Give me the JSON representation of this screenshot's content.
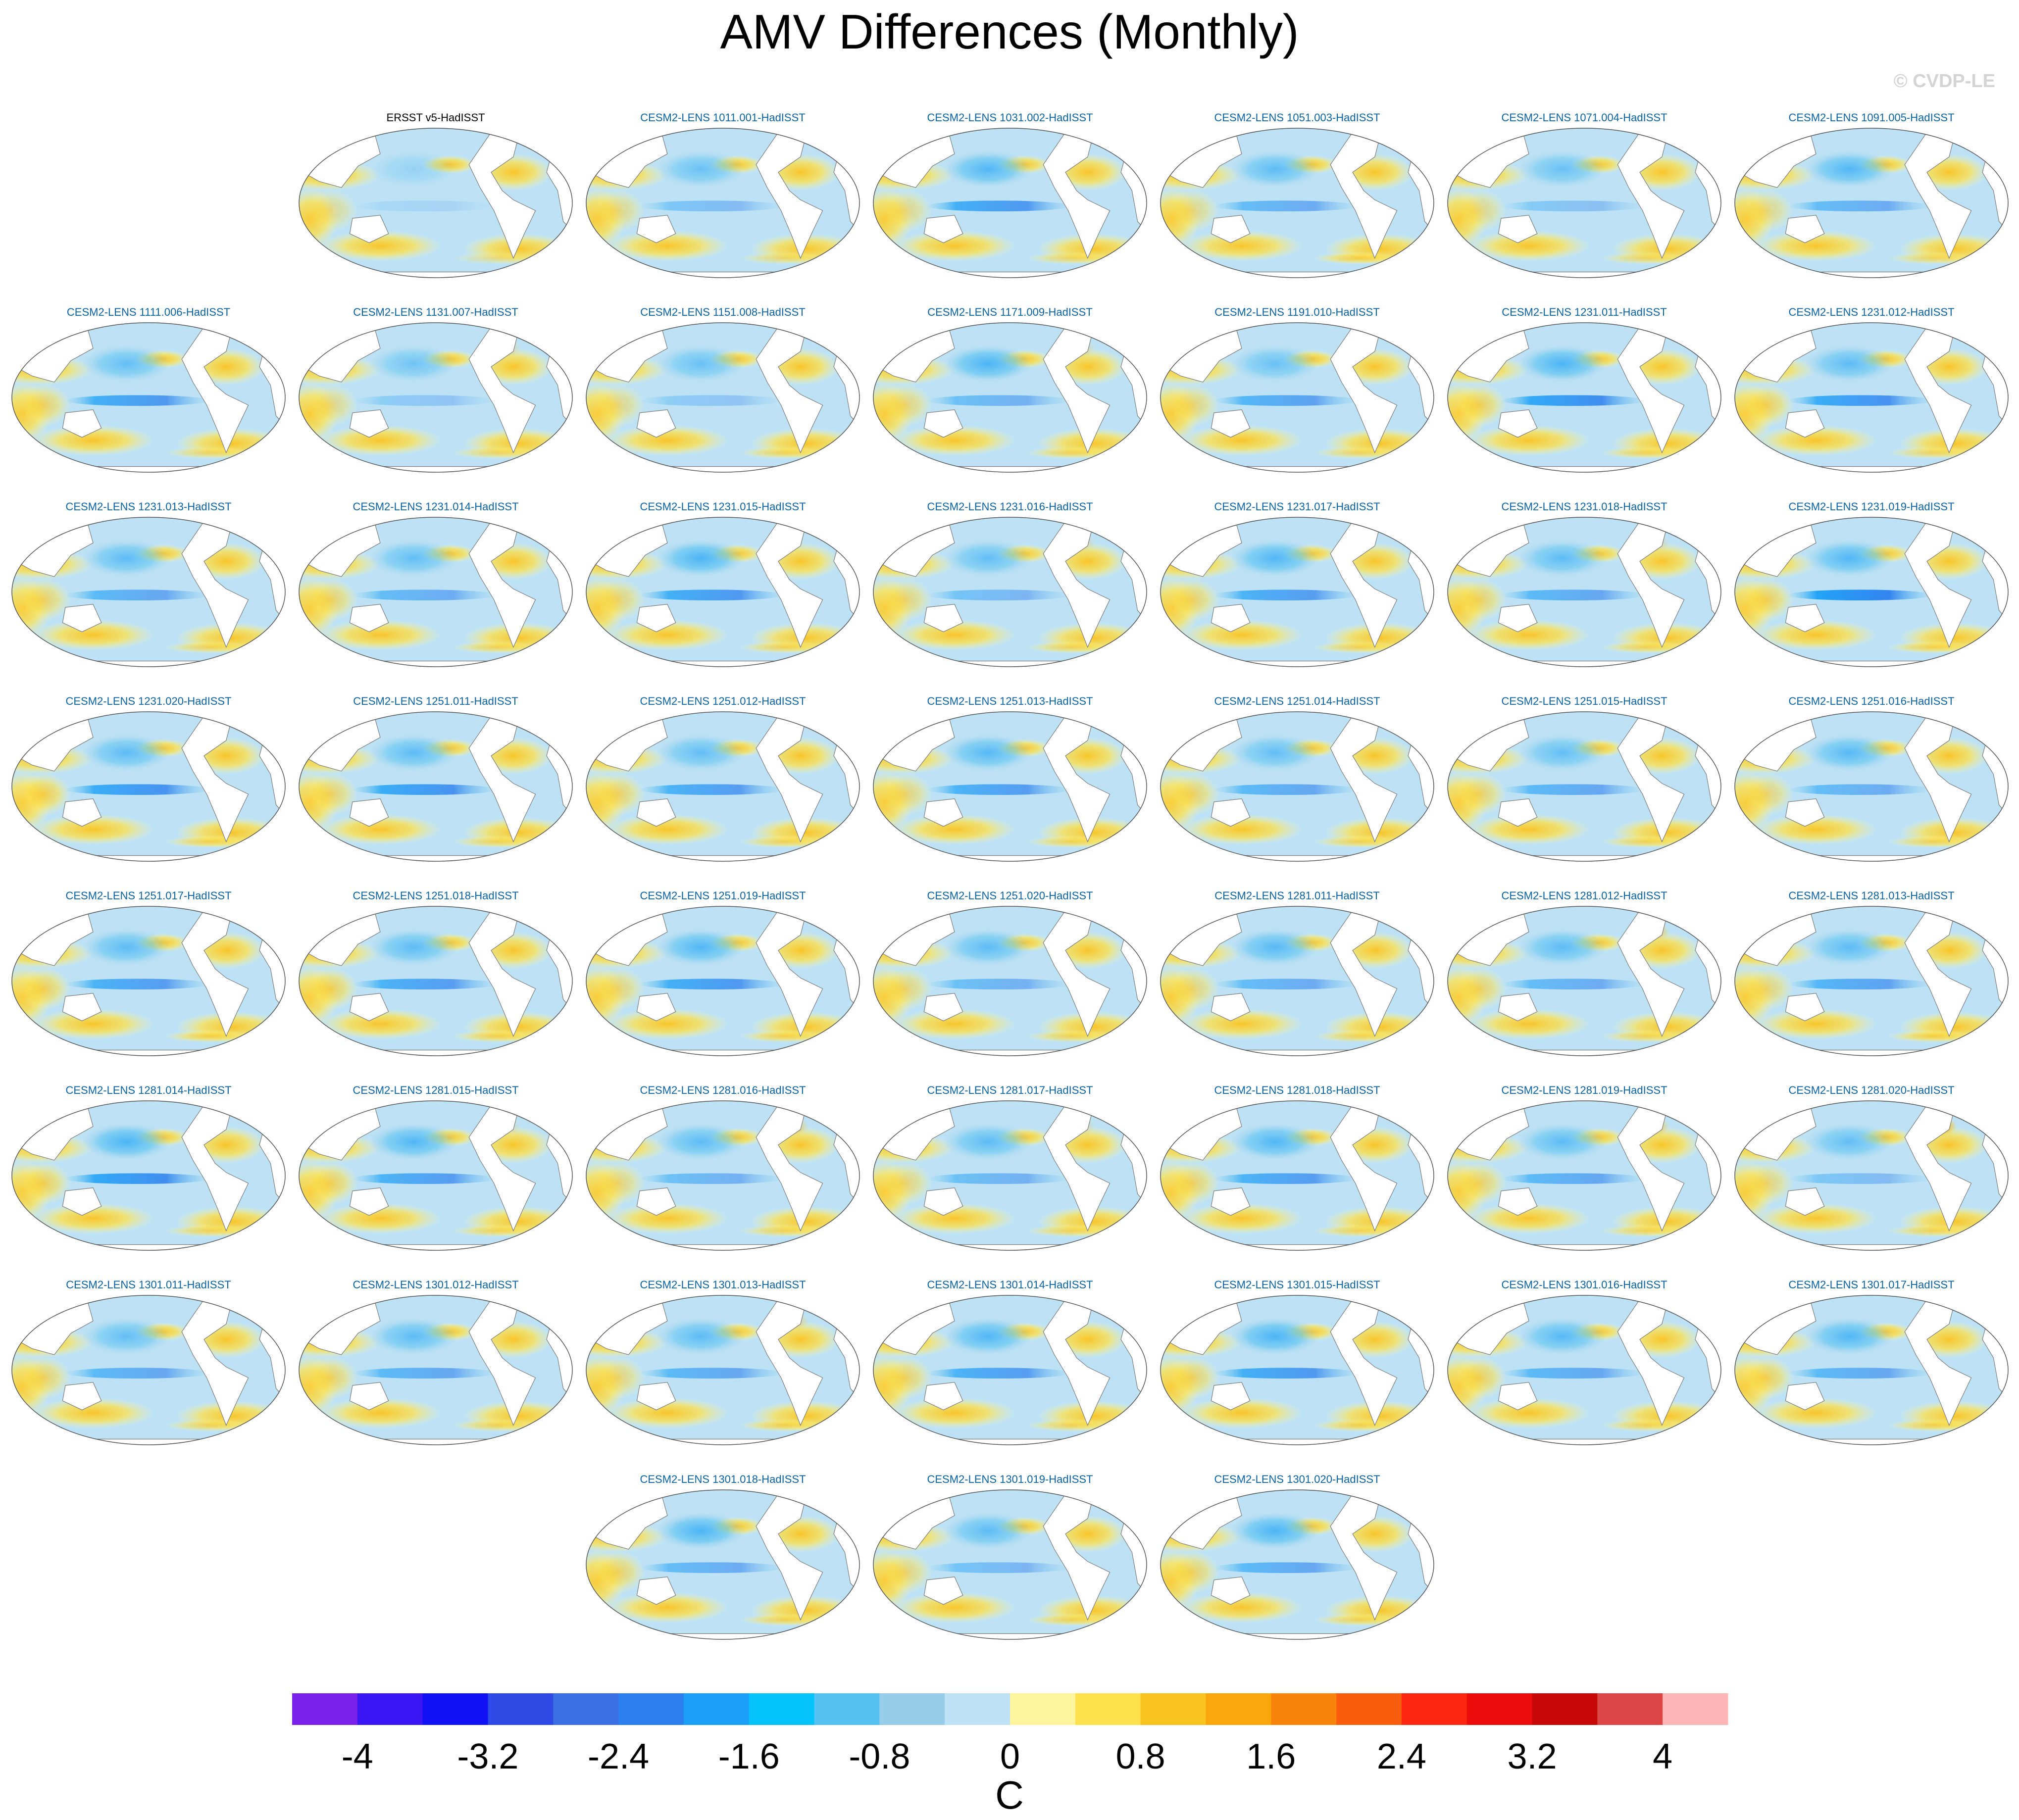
{
  "chart_data": {
    "type": "map-panels",
    "title": "AMV Differences (Monthly)",
    "credit": "© CVDP-LE",
    "panels": [
      {
        "title": "ERSST v5-HadISST",
        "row": 0,
        "col": 1,
        "title_color": "#000000",
        "features": {
          "band": 0.15,
          "north": 0.0,
          "hot": 0.0,
          "south": 0.1,
          "indian": 0.2
        }
      },
      {
        "title": "CESM2-LENS 1011.001-HadISST",
        "row": 0,
        "col": 2,
        "title_color": "#0b62a0",
        "features": {
          "band": 0.4,
          "north": 0.35,
          "hot": 0.0,
          "south": 0.3,
          "indian": 0.3
        }
      },
      {
        "title": "CESM2-LENS 1031.002-HadISST",
        "row": 0,
        "col": 3,
        "title_color": "#0b62a0",
        "features": {
          "band": 0.75,
          "north": 0.55,
          "hot": 0.0,
          "south": 0.4,
          "indian": 0.3
        }
      },
      {
        "title": "CESM2-LENS 1051.003-HadISST",
        "row": 0,
        "col": 4,
        "title_color": "#0b62a0",
        "features": {
          "band": 0.55,
          "north": 0.45,
          "hot": 0.1,
          "south": 0.7,
          "indian": 0.3
        }
      },
      {
        "title": "CESM2-LENS 1071.004-HadISST",
        "row": 0,
        "col": 5,
        "title_color": "#0b62a0",
        "features": {
          "band": 0.35,
          "north": 0.35,
          "hot": 0.0,
          "south": 0.4,
          "indian": 0.3
        }
      },
      {
        "title": "CESM2-LENS 1091.005-HadISST",
        "row": 0,
        "col": 6,
        "title_color": "#0b62a0",
        "features": {
          "band": 0.55,
          "north": 0.55,
          "hot": 0.0,
          "south": 0.4,
          "indian": 0.3
        }
      },
      {
        "title": "CESM2-LENS 1111.006-HadISST",
        "row": 1,
        "col": 0,
        "title_color": "#0b62a0",
        "features": {
          "band": 0.75,
          "north": 0.4,
          "hot": 0.0,
          "south": 0.4,
          "indian": 0.5
        }
      },
      {
        "title": "CESM2-LENS 1131.007-HadISST",
        "row": 1,
        "col": 1,
        "title_color": "#0b62a0",
        "features": {
          "band": 0.3,
          "north": 0.3,
          "hot": 0.3,
          "south": 0.4,
          "indian": 0.3
        }
      },
      {
        "title": "CESM2-LENS 1151.008-HadISST",
        "row": 1,
        "col": 2,
        "title_color": "#0b62a0",
        "features": {
          "band": 0.3,
          "north": 0.35,
          "hot": 0.1,
          "south": 0.5,
          "indian": 0.3
        }
      },
      {
        "title": "CESM2-LENS 1171.009-HadISST",
        "row": 1,
        "col": 3,
        "title_color": "#0b62a0",
        "features": {
          "band": 0.5,
          "north": 0.6,
          "hot": 0.3,
          "south": 0.5,
          "indian": 0.4
        }
      },
      {
        "title": "CESM2-LENS 1191.010-HadISST",
        "row": 1,
        "col": 4,
        "title_color": "#0b62a0",
        "features": {
          "band": 0.65,
          "north": 0.35,
          "hot": 0.0,
          "south": 0.4,
          "indian": 0.4
        }
      },
      {
        "title": "CESM2-LENS 1231.011-HadISST",
        "row": 1,
        "col": 5,
        "title_color": "#0b62a0",
        "features": {
          "band": 0.85,
          "north": 0.6,
          "hot": 0.0,
          "south": 0.5,
          "indian": 0.6
        }
      },
      {
        "title": "CESM2-LENS 1231.012-HadISST",
        "row": 1,
        "col": 6,
        "title_color": "#0b62a0",
        "features": {
          "band": 0.8,
          "north": 0.45,
          "hot": 0.0,
          "south": 0.4,
          "indian": 0.6
        }
      },
      {
        "title": "CESM2-LENS 1231.013-HadISST",
        "row": 2,
        "col": 0,
        "title_color": "#0b62a0",
        "features": {
          "band": 0.6,
          "north": 0.45,
          "hot": 0.0,
          "south": 0.5,
          "indian": 0.5
        }
      },
      {
        "title": "CESM2-LENS 1231.014-HadISST",
        "row": 2,
        "col": 1,
        "title_color": "#0b62a0",
        "features": {
          "band": 0.55,
          "north": 0.4,
          "hot": 0.0,
          "south": 0.5,
          "indian": 0.5
        }
      },
      {
        "title": "CESM2-LENS 1231.015-HadISST",
        "row": 2,
        "col": 2,
        "title_color": "#0b62a0",
        "features": {
          "band": 0.75,
          "north": 0.6,
          "hot": 0.1,
          "south": 0.5,
          "indian": 0.4
        }
      },
      {
        "title": "CESM2-LENS 1231.016-HadISST",
        "row": 2,
        "col": 3,
        "title_color": "#0b62a0",
        "features": {
          "band": 0.45,
          "north": 0.4,
          "hot": 0.3,
          "south": 0.5,
          "indian": 0.4
        }
      },
      {
        "title": "CESM2-LENS 1231.017-HadISST",
        "row": 2,
        "col": 4,
        "title_color": "#0b62a0",
        "features": {
          "band": 0.7,
          "north": 0.55,
          "hot": 0.0,
          "south": 0.5,
          "indian": 0.5
        }
      },
      {
        "title": "CESM2-LENS 1231.018-HadISST",
        "row": 2,
        "col": 5,
        "title_color": "#0b62a0",
        "features": {
          "band": 0.6,
          "north": 0.45,
          "hot": 0.3,
          "south": 0.5,
          "indian": 0.5
        }
      },
      {
        "title": "CESM2-LENS 1231.019-HadISST",
        "row": 2,
        "col": 6,
        "title_color": "#0b62a0",
        "features": {
          "band": 0.95,
          "north": 0.55,
          "hot": 0.0,
          "south": 0.6,
          "indian": 0.6
        }
      },
      {
        "title": "CESM2-LENS 1231.020-HadISST",
        "row": 3,
        "col": 0,
        "title_color": "#0b62a0",
        "features": {
          "band": 0.8,
          "north": 0.45,
          "hot": 0.0,
          "south": 0.6,
          "indian": 0.7
        }
      },
      {
        "title": "CESM2-LENS 1251.011-HadISST",
        "row": 3,
        "col": 1,
        "title_color": "#0b62a0",
        "features": {
          "band": 0.8,
          "north": 0.45,
          "hot": 0.0,
          "south": 0.5,
          "indian": 0.5
        }
      },
      {
        "title": "CESM2-LENS 1251.012-HadISST",
        "row": 3,
        "col": 2,
        "title_color": "#0b62a0",
        "features": {
          "band": 0.7,
          "north": 0.4,
          "hot": 0.0,
          "south": 0.5,
          "indian": 0.5
        }
      },
      {
        "title": "CESM2-LENS 1251.013-HadISST",
        "row": 3,
        "col": 3,
        "title_color": "#0b62a0",
        "features": {
          "band": 0.7,
          "north": 0.5,
          "hot": 0.0,
          "south": 0.5,
          "indian": 0.4
        }
      },
      {
        "title": "CESM2-LENS 1251.014-HadISST",
        "row": 3,
        "col": 4,
        "title_color": "#0b62a0",
        "features": {
          "band": 0.6,
          "north": 0.4,
          "hot": 0.0,
          "south": 0.5,
          "indian": 0.5
        }
      },
      {
        "title": "CESM2-LENS 1251.015-HadISST",
        "row": 3,
        "col": 5,
        "title_color": "#0b62a0",
        "features": {
          "band": 0.6,
          "north": 0.4,
          "hot": 0.0,
          "south": 0.5,
          "indian": 0.5
        }
      },
      {
        "title": "CESM2-LENS 1251.016-HadISST",
        "row": 3,
        "col": 6,
        "title_color": "#0b62a0",
        "features": {
          "band": 0.55,
          "north": 0.5,
          "hot": 0.0,
          "south": 0.5,
          "indian": 0.4
        }
      },
      {
        "title": "CESM2-LENS 1251.017-HadISST",
        "row": 4,
        "col": 0,
        "title_color": "#0b62a0",
        "features": {
          "band": 0.7,
          "north": 0.45,
          "hot": 0.0,
          "south": 0.7,
          "indian": 0.6
        }
      },
      {
        "title": "CESM2-LENS 1251.018-HadISST",
        "row": 4,
        "col": 1,
        "title_color": "#0b62a0",
        "features": {
          "band": 0.7,
          "north": 0.45,
          "hot": 0.0,
          "south": 0.6,
          "indian": 0.6
        }
      },
      {
        "title": "CESM2-LENS 1251.019-HadISST",
        "row": 4,
        "col": 2,
        "title_color": "#0b62a0",
        "features": {
          "band": 0.75,
          "north": 0.55,
          "hot": 0.0,
          "south": 0.6,
          "indian": 0.4
        }
      },
      {
        "title": "CESM2-LENS 1251.020-HadISST",
        "row": 4,
        "col": 3,
        "title_color": "#0b62a0",
        "features": {
          "band": 0.5,
          "north": 0.45,
          "hot": 0.1,
          "south": 0.5,
          "indian": 0.4
        }
      },
      {
        "title": "CESM2-LENS 1281.011-HadISST",
        "row": 4,
        "col": 4,
        "title_color": "#0b62a0",
        "features": {
          "band": 0.55,
          "north": 0.5,
          "hot": 0.0,
          "south": 0.5,
          "indian": 0.4
        }
      },
      {
        "title": "CESM2-LENS 1281.012-HadISST",
        "row": 4,
        "col": 5,
        "title_color": "#0b62a0",
        "features": {
          "band": 0.55,
          "north": 0.45,
          "hot": 0.6,
          "south": 0.5,
          "indian": 0.5
        }
      },
      {
        "title": "CESM2-LENS 1281.013-HadISST",
        "row": 4,
        "col": 6,
        "title_color": "#0b62a0",
        "features": {
          "band": 0.65,
          "north": 0.45,
          "hot": 0.0,
          "south": 0.7,
          "indian": 0.4
        }
      },
      {
        "title": "CESM2-LENS 1281.014-HadISST",
        "row": 5,
        "col": 0,
        "title_color": "#0b62a0",
        "features": {
          "band": 0.85,
          "north": 0.6,
          "hot": 0.0,
          "south": 0.5,
          "indian": 0.6
        }
      },
      {
        "title": "CESM2-LENS 1281.015-HadISST",
        "row": 5,
        "col": 1,
        "title_color": "#0b62a0",
        "features": {
          "band": 0.7,
          "north": 0.55,
          "hot": 0.2,
          "south": 0.5,
          "indian": 0.6
        }
      },
      {
        "title": "CESM2-LENS 1281.016-HadISST",
        "row": 5,
        "col": 2,
        "title_color": "#0b62a0",
        "features": {
          "band": 0.5,
          "north": 0.45,
          "hot": 0.6,
          "south": 0.5,
          "indian": 0.4
        }
      },
      {
        "title": "CESM2-LENS 1281.017-HadISST",
        "row": 5,
        "col": 3,
        "title_color": "#0b62a0",
        "features": {
          "band": 0.5,
          "north": 0.45,
          "hot": 0.3,
          "south": 0.5,
          "indian": 0.4
        }
      },
      {
        "title": "CESM2-LENS 1281.018-HadISST",
        "row": 5,
        "col": 4,
        "title_color": "#0b62a0",
        "features": {
          "band": 0.7,
          "north": 0.55,
          "hot": 0.0,
          "south": 0.5,
          "indian": 0.5
        }
      },
      {
        "title": "CESM2-LENS 1281.019-HadISST",
        "row": 5,
        "col": 5,
        "title_color": "#0b62a0",
        "features": {
          "band": 0.6,
          "north": 0.45,
          "hot": 0.6,
          "south": 0.5,
          "indian": 0.5
        }
      },
      {
        "title": "CESM2-LENS 1281.020-HadISST",
        "row": 5,
        "col": 6,
        "title_color": "#0b62a0",
        "features": {
          "band": 0.4,
          "north": 0.4,
          "hot": 1.0,
          "south": 0.5,
          "indian": 0.4
        }
      },
      {
        "title": "CESM2-LENS 1301.011-HadISST",
        "row": 6,
        "col": 0,
        "title_color": "#0b62a0",
        "features": {
          "band": 0.6,
          "north": 0.4,
          "hot": 0.0,
          "south": 0.5,
          "indian": 0.5
        }
      },
      {
        "title": "CESM2-LENS 1301.012-HadISST",
        "row": 6,
        "col": 1,
        "title_color": "#0b62a0",
        "features": {
          "band": 0.6,
          "north": 0.45,
          "hot": 0.0,
          "south": 0.5,
          "indian": 0.5
        }
      },
      {
        "title": "CESM2-LENS 1301.013-HadISST",
        "row": 6,
        "col": 2,
        "title_color": "#0b62a0",
        "features": {
          "band": 0.6,
          "north": 0.45,
          "hot": 0.5,
          "south": 0.6,
          "indian": 0.4
        }
      },
      {
        "title": "CESM2-LENS 1301.014-HadISST",
        "row": 6,
        "col": 3,
        "title_color": "#0b62a0",
        "features": {
          "band": 0.7,
          "north": 0.55,
          "hot": 0.0,
          "south": 0.5,
          "indian": 0.5
        }
      },
      {
        "title": "CESM2-LENS 1301.015-HadISST",
        "row": 6,
        "col": 4,
        "title_color": "#0b62a0",
        "features": {
          "band": 0.75,
          "north": 0.6,
          "hot": 0.0,
          "south": 0.6,
          "indian": 0.5
        }
      },
      {
        "title": "CESM2-LENS 1301.016-HadISST",
        "row": 6,
        "col": 5,
        "title_color": "#0b62a0",
        "features": {
          "band": 0.6,
          "north": 0.5,
          "hot": 0.0,
          "south": 0.5,
          "indian": 0.6
        }
      },
      {
        "title": "CESM2-LENS 1301.017-HadISST",
        "row": 6,
        "col": 6,
        "title_color": "#0b62a0",
        "features": {
          "band": 0.6,
          "north": 0.55,
          "hot": 0.0,
          "south": 0.6,
          "indian": 0.6
        }
      },
      {
        "title": "CESM2-LENS 1301.018-HadISST",
        "row": 7,
        "col": 2,
        "title_color": "#0b62a0",
        "features": {
          "band": 0.55,
          "north": 0.6,
          "hot": 0.0,
          "south": 0.5,
          "indian": 0.5
        }
      },
      {
        "title": "CESM2-LENS 1301.019-HadISST",
        "row": 7,
        "col": 3,
        "title_color": "#0b62a0",
        "features": {
          "band": 0.45,
          "north": 0.45,
          "hot": 0.0,
          "south": 0.5,
          "indian": 0.4
        }
      },
      {
        "title": "CESM2-LENS 1301.020-HadISST",
        "row": 7,
        "col": 4,
        "title_color": "#0b62a0",
        "features": {
          "band": 0.6,
          "north": 0.6,
          "hot": 0.0,
          "south": 0.5,
          "indian": 0.5
        }
      }
    ],
    "colorbar": {
      "label": "C",
      "min": -4.4,
      "max": 4.4,
      "step": 0.4,
      "ticks": [
        "-4",
        "-3.2",
        "-2.4",
        "-1.6",
        "-0.8",
        "0",
        "0.8",
        "1.6",
        "2.4",
        "3.2",
        "4"
      ],
      "colors": [
        "#7a22ea",
        "#3a16f2",
        "#1010f5",
        "#2e4ae6",
        "#3b6ee2",
        "#2b7fee",
        "#1aa0f6",
        "#06c2fb",
        "#54c1f1",
        "#98cdea",
        "#bee2f5",
        "#fdf59b",
        "#fde14d",
        "#fbc320",
        "#f9a60d",
        "#fa830a",
        "#f85d0b",
        "#fc2710",
        "#ed0c0c",
        "#c70705",
        "#dc4646",
        "#fdb6b6"
      ]
    }
  }
}
